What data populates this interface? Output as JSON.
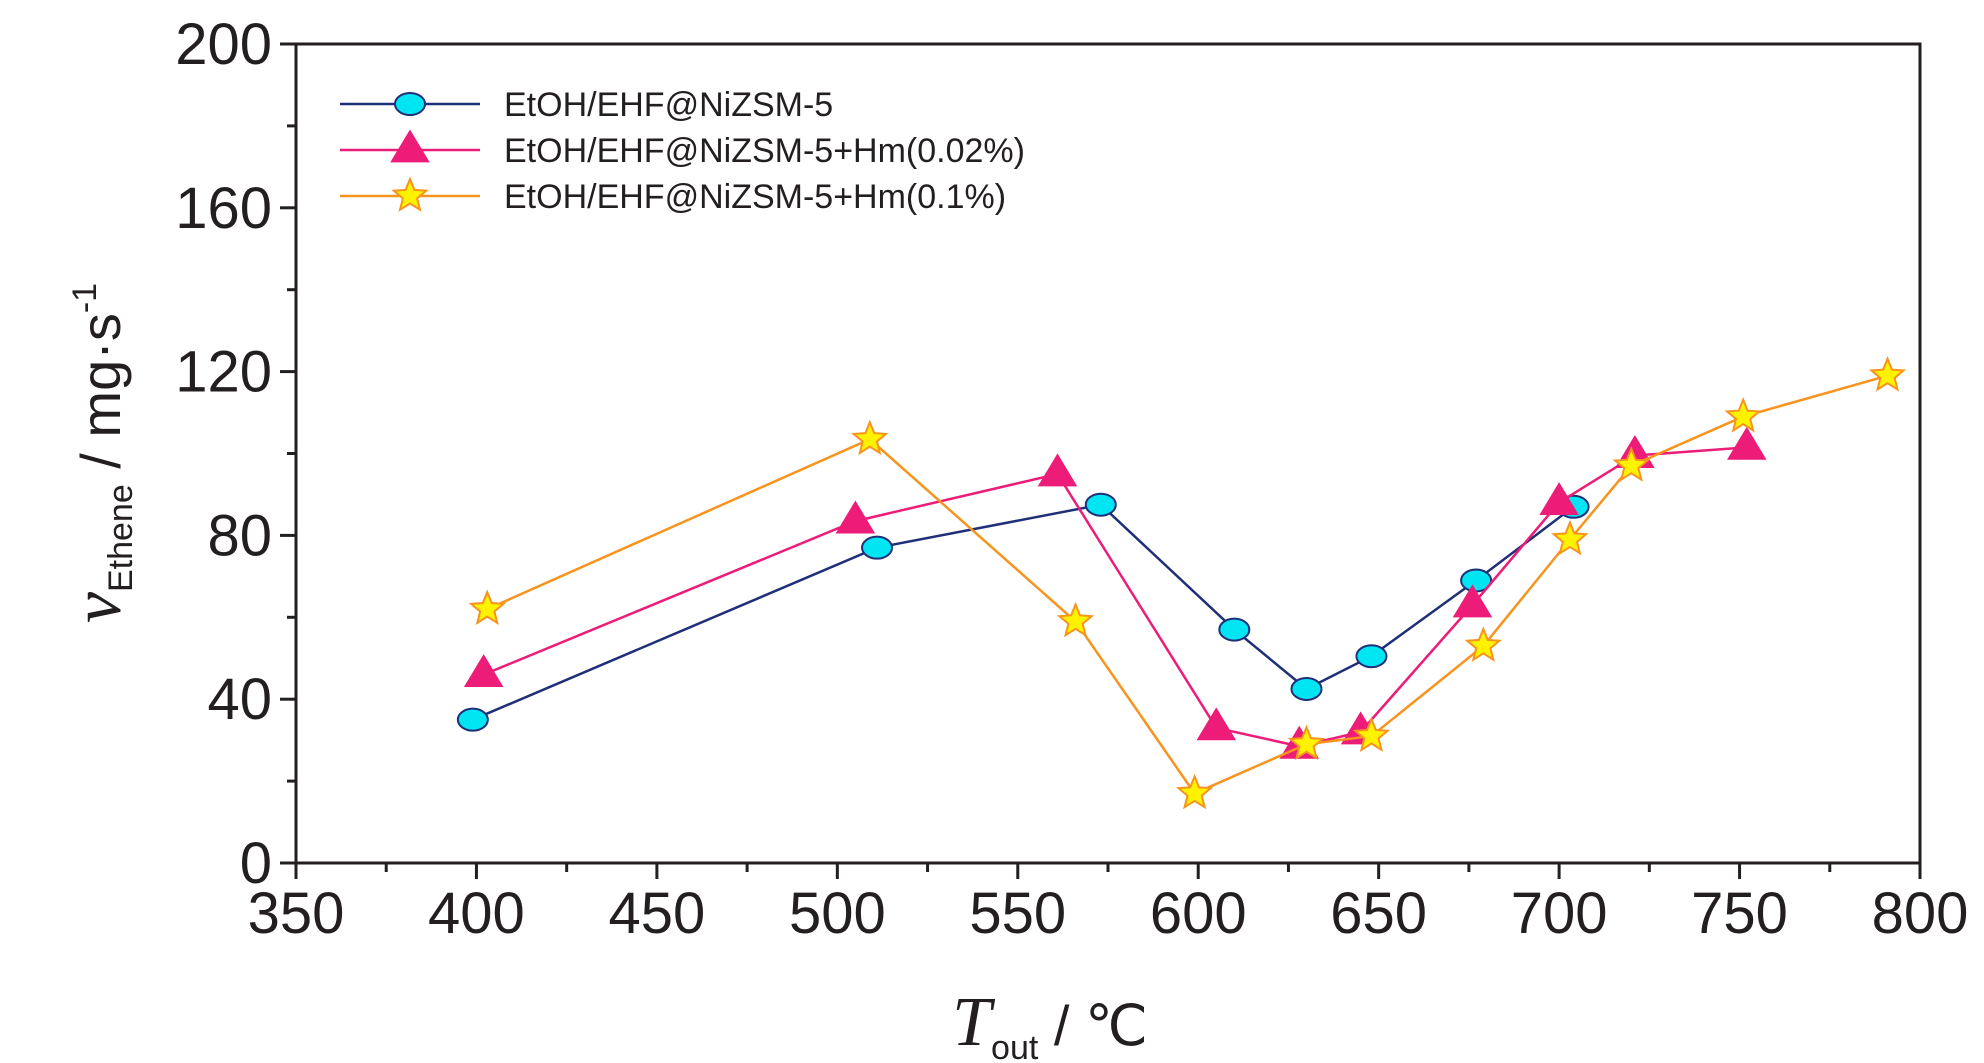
{
  "chart_data": {
    "type": "line",
    "x_axis": {
      "symbol": "T",
      "subscript": "out",
      "unit": " / ℃",
      "range": [
        350,
        800
      ],
      "ticks": [
        "350",
        "400",
        "450",
        "500",
        "550",
        "600",
        "650",
        "700",
        "750",
        "800"
      ]
    },
    "y_axis": {
      "symbol": "v",
      "subscript": "Ethene",
      "unit": " / mg·s",
      "unit_superscript": "-1",
      "range": [
        0,
        200
      ],
      "ticks": [
        "0",
        "40",
        "80",
        "120",
        "160",
        "200"
      ]
    },
    "grid": false,
    "legend_position": "top-left",
    "series": [
      {
        "name": "EtOH/EHF@NiZSM-5",
        "marker": "circle",
        "line_color": "#1f2f78",
        "marker_fill": "#00e5f2",
        "marker_stroke": "#1f2f78",
        "points": [
          [
            399,
            35
          ],
          [
            511,
            77
          ],
          [
            573,
            87.5
          ],
          [
            610,
            57
          ],
          [
            630,
            42.5
          ],
          [
            648,
            50.5
          ],
          [
            677,
            69
          ],
          [
            704,
            87
          ]
        ]
      },
      {
        "name": "EtOH/EHF@NiZSM-5+Hm(0.02%)",
        "marker": "triangle",
        "line_color": "#ec1c78",
        "marker_fill": "#ec1c78",
        "marker_stroke": "#ec1c78",
        "points": [
          [
            402,
            46
          ],
          [
            505,
            83.5
          ],
          [
            561,
            95
          ],
          [
            605,
            33
          ],
          [
            628,
            28.5
          ],
          [
            645,
            32
          ],
          [
            676,
            63
          ],
          [
            700,
            88
          ],
          [
            721,
            99.5
          ],
          [
            752,
            101.5
          ]
        ]
      },
      {
        "name": "EtOH/EHF@NiZSM-5+Hm(0.1%)",
        "marker": "star",
        "line_color": "#f7941d",
        "marker_fill": "#fff200",
        "marker_stroke": "#f7941d",
        "points": [
          [
            403,
            62
          ],
          [
            509,
            103.5
          ],
          [
            566,
            59
          ],
          [
            599,
            17
          ],
          [
            630,
            29
          ],
          [
            648,
            31
          ],
          [
            679,
            53
          ],
          [
            703,
            79
          ],
          [
            720,
            97
          ],
          [
            751,
            109
          ],
          [
            791,
            119
          ]
        ]
      }
    ]
  }
}
